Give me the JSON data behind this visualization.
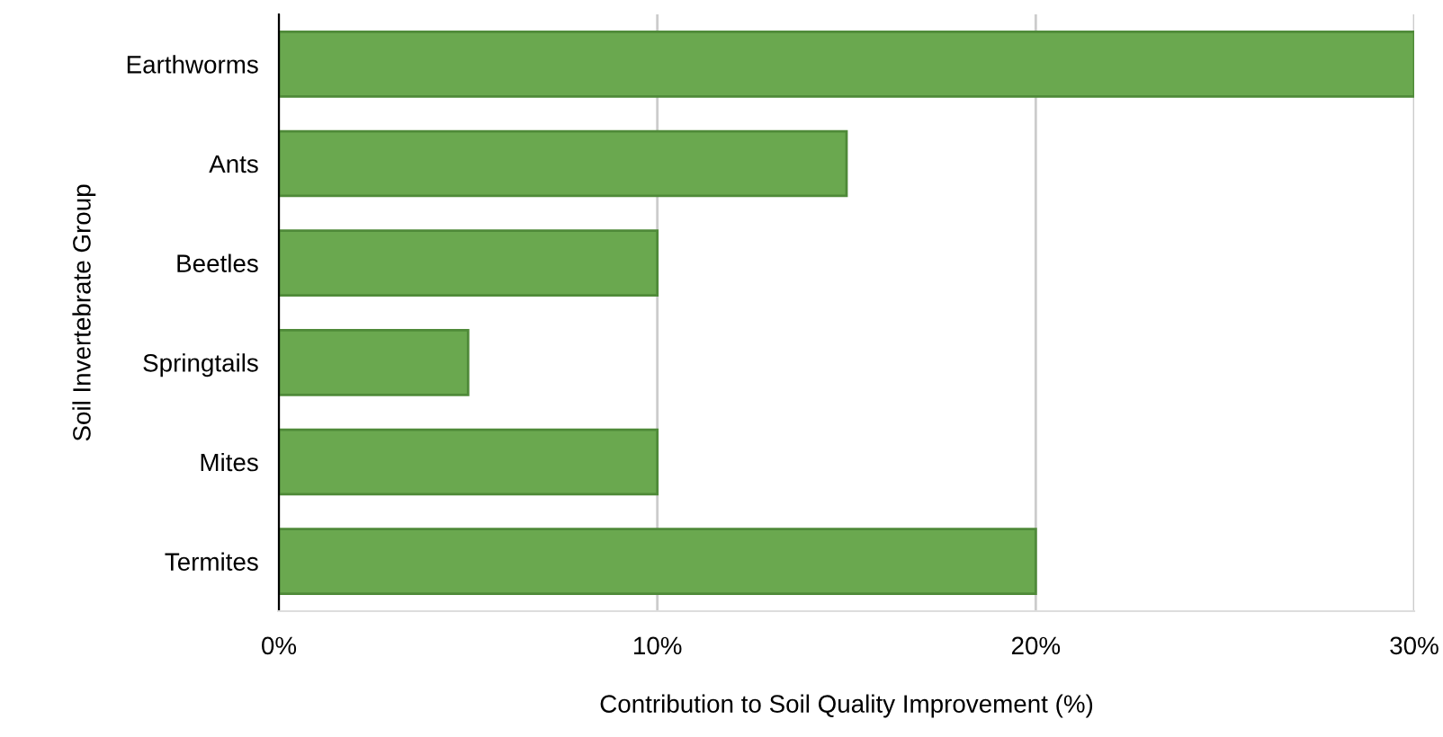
{
  "chart_data": {
    "type": "bar",
    "orientation": "horizontal",
    "categories": [
      "Earthworms",
      "Ants",
      "Beetles",
      "Springtails",
      "Mites",
      "Termites"
    ],
    "values": [
      30,
      15,
      10,
      5,
      10,
      20
    ],
    "color": "#6aa84f",
    "xlim": [
      0,
      30
    ],
    "xticks": [
      {
        "value": 0,
        "label": "0%"
      },
      {
        "value": 10,
        "label": "10%"
      },
      {
        "value": 20,
        "label": "20%"
      },
      {
        "value": 30,
        "label": "30%"
      }
    ],
    "xlabel": "Contribution to Soil Quality Improvement (%)",
    "ylabel": "Soil Invertebrate Group",
    "grid": "x",
    "legend": false
  }
}
